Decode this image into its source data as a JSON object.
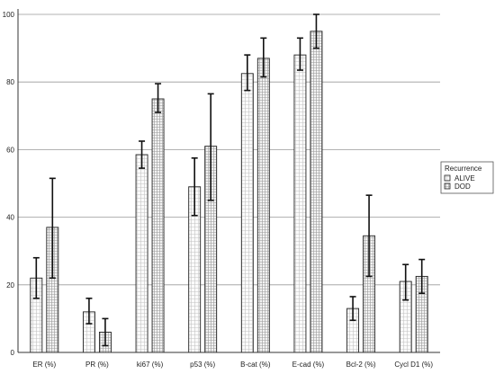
{
  "chart_data": {
    "type": "bar",
    "title": "",
    "xlabel": "",
    "ylabel": "",
    "ylim": [
      0,
      100
    ],
    "yticks": [
      0,
      20,
      40,
      60,
      80,
      100
    ],
    "grid": true,
    "error_bars": true,
    "categories": [
      "ER (%)",
      "PR (%)",
      "ki67 (%)",
      "p53 (%)",
      "B-cat (%)",
      "E-cad (%)",
      "Bcl-2 (%)",
      "Cycl D1 (%)"
    ],
    "legend": {
      "title": "Recurrence",
      "placement": "right"
    },
    "series": [
      {
        "name": "ALIVE",
        "pattern": "light-grid",
        "values": [
          22,
          12,
          58.5,
          49,
          82.5,
          88,
          13,
          21
        ],
        "err_low": [
          16,
          8.5,
          54.5,
          40.5,
          77.5,
          83.5,
          9.5,
          15.5
        ],
        "err_high": [
          28,
          16,
          62.5,
          57.5,
          88,
          93,
          16.5,
          26
        ]
      },
      {
        "name": "DOD",
        "pattern": "dense-grid",
        "values": [
          37,
          6,
          75,
          61,
          87,
          95,
          34.5,
          22.5
        ],
        "err_low": [
          22,
          2,
          71,
          45,
          81.5,
          90,
          22.5,
          17.5
        ],
        "err_high": [
          51.5,
          10,
          79.5,
          76.5,
          93,
          100,
          46.5,
          27.5
        ]
      }
    ]
  }
}
